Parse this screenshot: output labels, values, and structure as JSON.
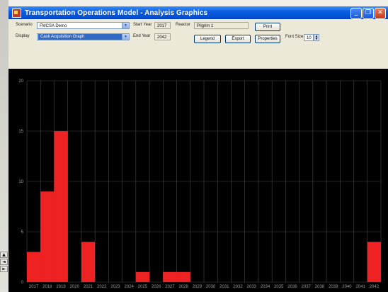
{
  "window": {
    "title": "Transportation Operations Model - Analysis Graphics",
    "titlebar_buttons": [
      "minimize-icon",
      "restore-icon",
      "close-icon"
    ]
  },
  "controls": {
    "scenario_label": "Scenario",
    "scenario_value": "FMCSA Demo",
    "display_label": "Display",
    "display_value": "Cask Acquisition Graph",
    "start_year_label": "Start Year",
    "start_year_value": "2017",
    "end_year_label": "End Year",
    "end_year_value": "2042",
    "reactor_label": "Reactor",
    "reactor_value": "Pilgrim 1",
    "print_label": "Print",
    "legend_label": "Legend",
    "export_label": "Export",
    "properties_label": "Properties",
    "font_size_label": "Font Size:",
    "font_size_value": "10"
  },
  "colors": {
    "title_bar": "#0450d2",
    "chart_background": "#000000",
    "bar_fill": "#ee2222",
    "grid": "#4a4a4a",
    "axis_text": "#9a9a9a"
  },
  "chart_data": {
    "type": "bar",
    "title": "",
    "xlabel": "",
    "ylabel": "",
    "ylim": [
      0,
      20
    ],
    "yticks": [
      0,
      5,
      10,
      15,
      20
    ],
    "grid": true,
    "categories": [
      "2017",
      "2018",
      "2019",
      "2020",
      "2021",
      "2022",
      "2023",
      "2024",
      "2025",
      "2026",
      "2027",
      "2028",
      "2029",
      "2030",
      "2031",
      "2032",
      "2033",
      "2034",
      "2035",
      "2036",
      "2037",
      "2038",
      "2039",
      "2040",
      "2041",
      "2042"
    ],
    "values": [
      3,
      9,
      15,
      0,
      4,
      0,
      0,
      0,
      1,
      0,
      1,
      1,
      0,
      0,
      0,
      0,
      0,
      0,
      0,
      0,
      0,
      0,
      0,
      0,
      0,
      4
    ]
  }
}
